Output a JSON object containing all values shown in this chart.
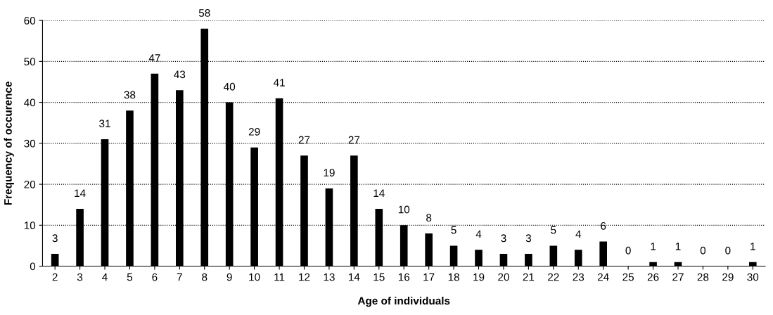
{
  "chart_data": {
    "type": "bar",
    "categories": [
      "2",
      "3",
      "4",
      "5",
      "6",
      "7",
      "8",
      "9",
      "10",
      "11",
      "12",
      "13",
      "14",
      "15",
      "16",
      "17",
      "18",
      "19",
      "20",
      "21",
      "22",
      "23",
      "24",
      "25",
      "26",
      "27",
      "28",
      "29",
      "30"
    ],
    "values": [
      3,
      14,
      31,
      38,
      47,
      43,
      58,
      40,
      29,
      41,
      27,
      19,
      27,
      14,
      10,
      8,
      5,
      4,
      3,
      3,
      5,
      4,
      6,
      0,
      1,
      1,
      0,
      0,
      1
    ],
    "color": "#000000",
    "xlabel": "Age of individuals",
    "ylabel": "Frequency of occurence",
    "ylim": [
      0,
      60
    ],
    "yticks": [
      0,
      10,
      20,
      30,
      40,
      50,
      60
    ],
    "grid": "y",
    "data_labels": true
  }
}
